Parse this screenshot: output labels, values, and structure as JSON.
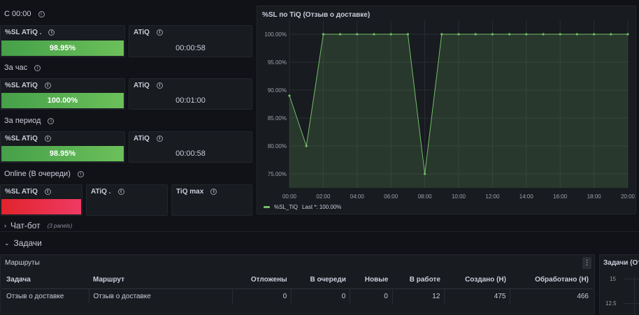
{
  "sections": {
    "since_midnight": "С 00:00",
    "per_hour": "За час",
    "per_period": "За период",
    "online": "Online (В очереди)"
  },
  "stats": {
    "r1_sl_title": "%SL ATiQ .",
    "r1_sl_value": "98.95%",
    "r1_atiq_title": "ATiQ",
    "r1_atiq_value": "00:00:58",
    "r2_sl_title": "%SL ATiQ",
    "r2_sl_value": "100.00%",
    "r2_atiq_title": "ATiQ",
    "r2_atiq_value": "00:01:00",
    "r3_sl_title": "%SL ATiQ",
    "r3_sl_value": "98.95%",
    "r3_atiq_title": "ATiQ",
    "r3_atiq_value": "00:00:58",
    "r4_sl_title": "%SL ATiQ",
    "r4_atiq_title": "ATiQ .",
    "r4_tiqmax_title": "TiQ max"
  },
  "colors": {
    "stat_green": "#56a64b",
    "stat_red": "#e02f44",
    "series_line": "#73bf69"
  },
  "chart": {
    "panel_title": "%SL по TiQ (Отзыв о доставке)",
    "legend_label": "%SL_TiQ",
    "legend_stat": "Last *: 100.00%"
  },
  "chart_data": {
    "type": "area",
    "title": "%SL по TiQ (Отзыв о доставке)",
    "x": [
      "00:00",
      "01:00",
      "02:00",
      "03:00",
      "04:00",
      "05:00",
      "06:00",
      "07:00",
      "08:00",
      "09:00",
      "10:00",
      "11:00",
      "12:00",
      "13:00",
      "14:00",
      "15:00",
      "16:00",
      "17:00",
      "18:00",
      "19:00",
      "20:00"
    ],
    "series": [
      {
        "name": "%SL_TiQ",
        "values": [
          89,
          80,
          100,
          100,
          100,
          100,
          100,
          100,
          75,
          100,
          100,
          100,
          100,
          100,
          100,
          100,
          100,
          100,
          100,
          100,
          100
        ]
      }
    ],
    "x_ticks": [
      "00:00",
      "02:00",
      "04:00",
      "06:00",
      "08:00",
      "10:00",
      "12:00",
      "14:00",
      "16:00",
      "18:00",
      "20:00"
    ],
    "y_ticks": [
      "75.00%",
      "80.00%",
      "85.00%",
      "90.00%",
      "95.00%",
      "100.00%"
    ],
    "ylim": [
      72.5,
      102.5
    ],
    "grid": true,
    "legend": "bottom-left"
  },
  "rows": {
    "chatbot_title": "Чат-бот",
    "chatbot_sub": "(3 panels)",
    "tasks_title": "Задачи"
  },
  "routes_table": {
    "title": "Маршруты",
    "columns": [
      "Задача",
      "Маршрут",
      "Отложены",
      "В очереди",
      "Новые",
      "В работе",
      "Создано (Н)",
      "Обработано (Н)"
    ],
    "rows": [
      [
        "Отзыв о доставке",
        "Отзыв о доставке",
        "0",
        "0",
        "0",
        "12",
        "475",
        "466"
      ]
    ]
  },
  "tasks_panel": {
    "title": "Задачи (От",
    "y_ticks": [
      "15",
      "12.5"
    ]
  }
}
